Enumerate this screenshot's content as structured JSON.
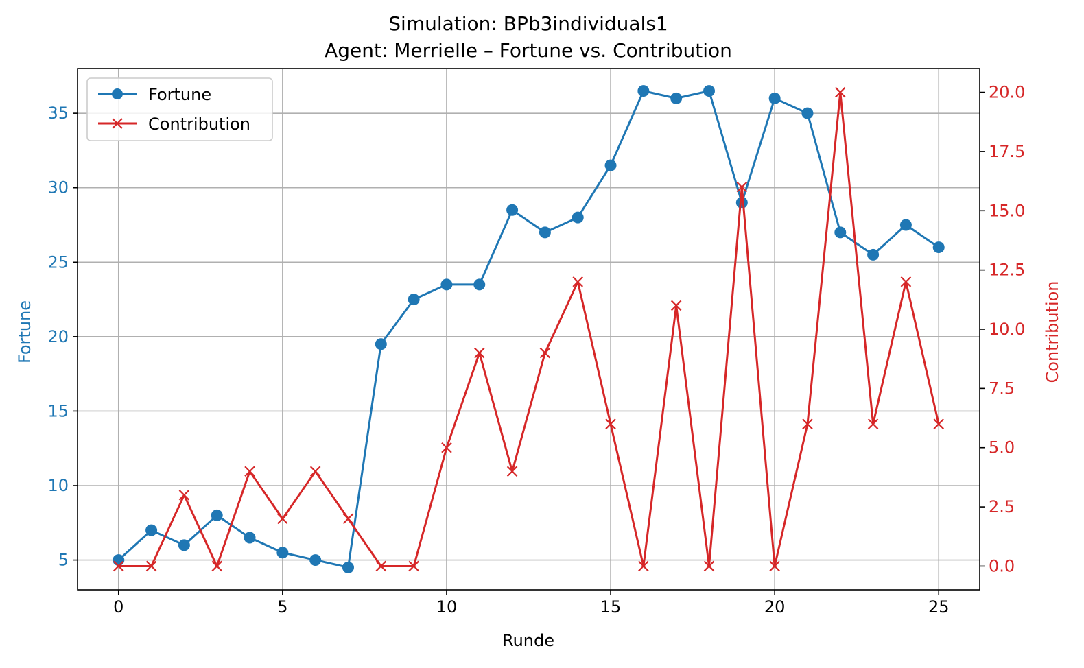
{
  "chart_data": {
    "type": "line",
    "title": "Simulation: BPb3individuals1",
    "subtitle": "Agent: Merrielle – Fortune vs. Contribution",
    "xlabel": "Runde",
    "x": [
      0,
      1,
      2,
      3,
      4,
      5,
      6,
      7,
      8,
      9,
      10,
      11,
      12,
      13,
      14,
      15,
      16,
      17,
      18,
      19,
      20,
      21,
      22,
      23,
      24,
      25
    ],
    "xlim": [
      -1.25,
      26.25
    ],
    "x_ticks": [
      0,
      5,
      10,
      15,
      20,
      25
    ],
    "x_tick_labels": [
      "0",
      "5",
      "10",
      "15",
      "20",
      "25"
    ],
    "left_axis": {
      "label": "Fortune",
      "color": "#1f77b4",
      "ylim": [
        3.0,
        38.0
      ],
      "ticks": [
        5,
        10,
        15,
        20,
        25,
        30,
        35
      ],
      "tick_labels": [
        "5",
        "10",
        "15",
        "20",
        "25",
        "30",
        "35"
      ]
    },
    "right_axis": {
      "label": "Contribution",
      "color": "#d62728",
      "ylim": [
        -1.0,
        21.0
      ],
      "ticks": [
        0,
        2.5,
        5,
        7.5,
        10,
        12.5,
        15,
        17.5,
        20
      ],
      "tick_labels": [
        "0.0",
        "2.5",
        "5.0",
        "7.5",
        "10.0",
        "12.5",
        "15.0",
        "17.5",
        "20.0"
      ]
    },
    "series": [
      {
        "name": "Fortune",
        "axis": "left",
        "color": "#1f77b4",
        "marker": "circle",
        "values": [
          5,
          7,
          6,
          8,
          6.5,
          5.5,
          5,
          4.5,
          19.5,
          22.5,
          23.5,
          23.5,
          28.5,
          27,
          28,
          31.5,
          36.5,
          36,
          36.5,
          29,
          36,
          35,
          27,
          25.5,
          27.5,
          26
        ]
      },
      {
        "name": "Contribution",
        "axis": "right",
        "color": "#d62728",
        "marker": "x",
        "values": [
          0,
          0,
          3,
          0,
          4,
          2,
          4,
          2,
          0,
          0,
          5,
          9,
          4,
          9,
          12,
          6,
          0,
          11,
          0,
          16,
          0,
          6,
          20,
          6,
          12,
          6
        ]
      }
    ],
    "grid": true,
    "legend_position": "top-left"
  }
}
